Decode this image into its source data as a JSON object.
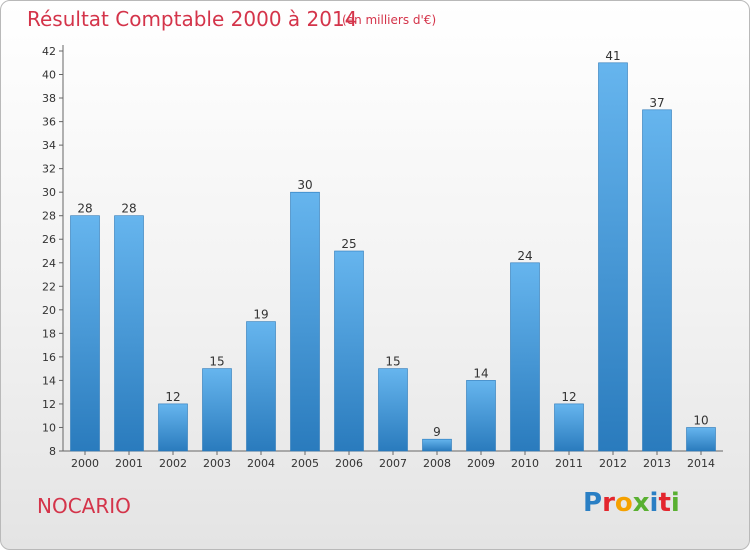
{
  "header": {
    "title": "Résultat Comptable 2000 à 2014",
    "subtitle": "(en milliers d'€)"
  },
  "footer": {
    "place": "NOCARIO",
    "logo": "Proxiti",
    "logo_letter_colors": [
      "#2a7fc4",
      "#e3262d",
      "#f5a100",
      "#59b031",
      "#2a7fc4",
      "#e3262d",
      "#59b031"
    ]
  },
  "colors": {
    "bar_light": "#66b5ee",
    "bar_dark": "#2a7bbd",
    "accent": "#d4344a"
  },
  "chart_data": {
    "type": "bar",
    "title": "Résultat Comptable 2000 à 2014",
    "subtitle": "(en milliers d'€)",
    "categories": [
      "2000",
      "2001",
      "2002",
      "2003",
      "2004",
      "2005",
      "2006",
      "2007",
      "2008",
      "2009",
      "2010",
      "2011",
      "2012",
      "2013",
      "2014"
    ],
    "values": [
      28,
      28,
      12,
      15,
      19,
      30,
      25,
      15,
      9,
      14,
      24,
      12,
      41,
      37,
      10
    ],
    "y_ticks": [
      8,
      10,
      12,
      14,
      16,
      18,
      20,
      22,
      24,
      26,
      28,
      30,
      32,
      34,
      36,
      38,
      40,
      42
    ],
    "ylim": [
      8,
      42
    ],
    "grid": false,
    "xlabel": "",
    "ylabel": ""
  }
}
